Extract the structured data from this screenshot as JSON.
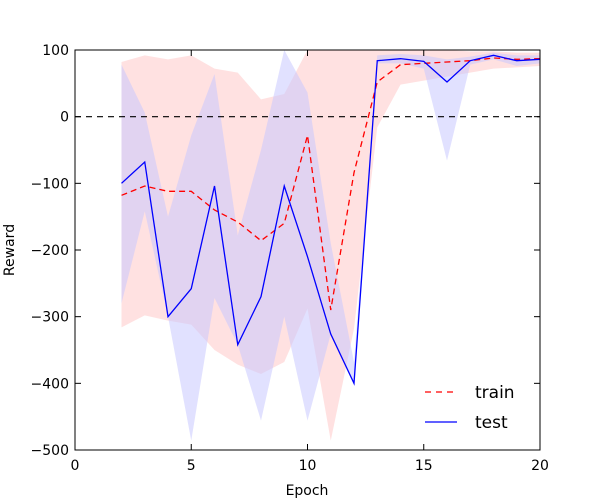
{
  "chart_data": {
    "type": "line",
    "xlabel": "Epoch",
    "ylabel": "Reward",
    "xlim": [
      0,
      20
    ],
    "ylim": [
      -500,
      100
    ],
    "xticks": [
      0,
      5,
      10,
      15,
      20
    ],
    "yticks": [
      -500,
      -400,
      -300,
      -200,
      -100,
      0,
      100
    ],
    "x_tick_labels": [
      "0",
      "5",
      "10",
      "15",
      "20"
    ],
    "y_tick_labels": [
      "−500",
      "−400",
      "−300",
      "−200",
      "−100",
      "0",
      "100"
    ],
    "reference_line": {
      "y": 0,
      "style": "dashed",
      "color": "#000000"
    },
    "grid": false,
    "legend": {
      "position": "bottom-right",
      "frame": false
    },
    "x": [
      2,
      3,
      4,
      5,
      6,
      7,
      8,
      9,
      10,
      11,
      12,
      13,
      14,
      15,
      16,
      17,
      18,
      19,
      20
    ],
    "series": [
      {
        "name": "train",
        "color": "#ff0000",
        "style": "dashed",
        "band_color": "#ffc8c8",
        "values": [
          -118,
          -104,
          -112,
          -112,
          -140,
          -158,
          -186,
          -160,
          -28,
          -290,
          -84,
          52,
          78,
          80,
          82,
          84,
          88,
          86,
          87
        ],
        "upper": [
          82,
          92,
          86,
          92,
          72,
          66,
          26,
          34,
          108,
          108,
          108,
          108,
          108,
          104,
          100,
          98,
          98,
          96,
          96
        ],
        "lower": [
          -316,
          -298,
          -306,
          -312,
          -350,
          -372,
          -386,
          -368,
          -288,
          -486,
          -318,
          -16,
          48,
          54,
          60,
          66,
          72,
          74,
          76
        ]
      },
      {
        "name": "test",
        "color": "#0000ff",
        "style": "solid",
        "band_color": "#c8c8ff",
        "values": [
          -100,
          -68,
          -300,
          -258,
          -104,
          -342,
          -270,
          -104,
          -210,
          -326,
          -400,
          84,
          87,
          83,
          52,
          84,
          92,
          84,
          86
        ],
        "upper": [
          78,
          6,
          -150,
          -28,
          64,
          -178,
          -50,
          100,
          36,
          -190,
          -368,
          92,
          94,
          92,
          86,
          90,
          96,
          92,
          92
        ],
        "lower": [
          -280,
          -142,
          -300,
          -486,
          -272,
          -342,
          -456,
          -300,
          -456,
          -326,
          -400,
          80,
          80,
          72,
          -66,
          78,
          86,
          76,
          80
        ]
      }
    ]
  }
}
